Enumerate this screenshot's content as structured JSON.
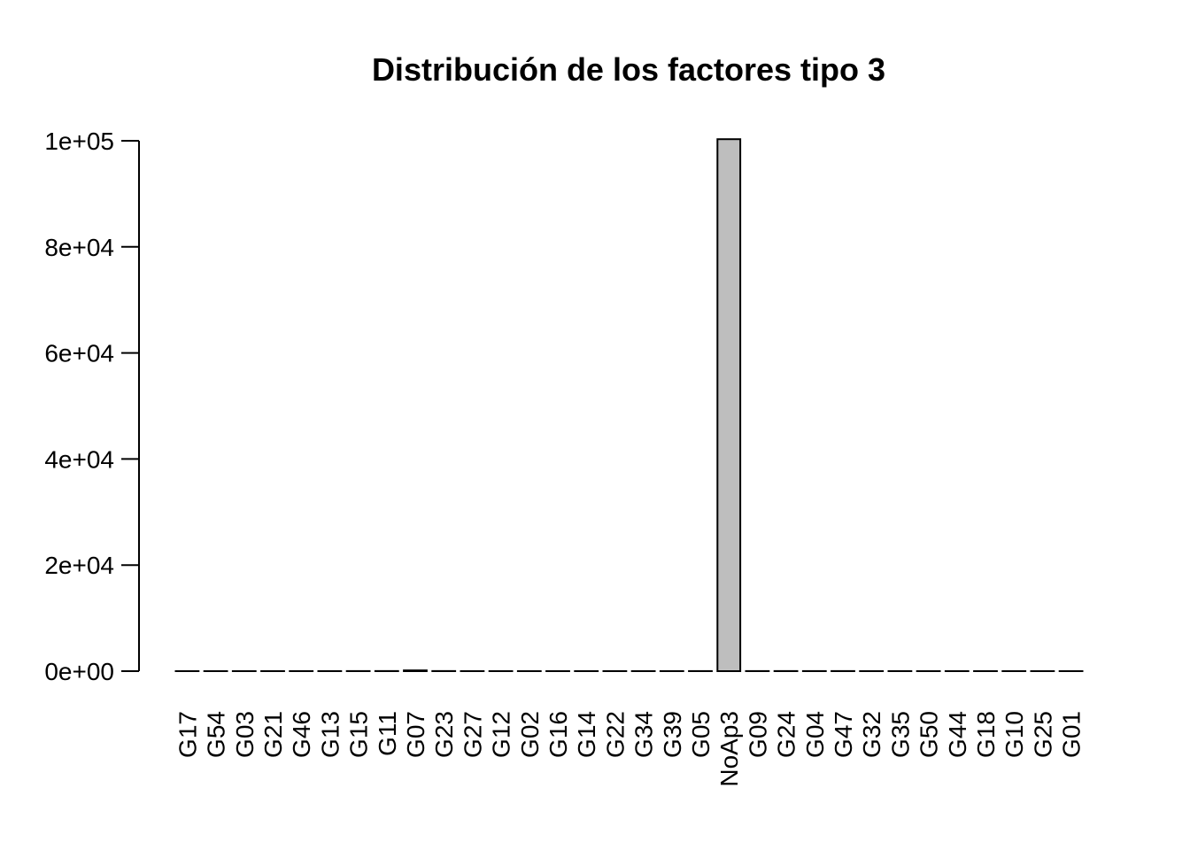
{
  "chart_data": {
    "type": "bar",
    "title": "Distribución de los factores tipo 3",
    "xlabel": "",
    "ylabel": "",
    "ylim": [
      0,
      100000
    ],
    "yticks": [
      0,
      20000,
      40000,
      60000,
      80000,
      100000
    ],
    "ytick_labels": [
      "0e+00",
      "2e+04",
      "4e+04",
      "6e+04",
      "8e+04",
      "1e+05"
    ],
    "categories": [
      "G17",
      "G54",
      "G03",
      "G21",
      "G46",
      "G13",
      "G15",
      "G11",
      "G07",
      "G23",
      "G27",
      "G12",
      "G02",
      "G16",
      "G14",
      "G22",
      "G34",
      "G39",
      "G05",
      "NoAp3",
      "G09",
      "G24",
      "G04",
      "G47",
      "G32",
      "G35",
      "G50",
      "G44",
      "G18",
      "G10",
      "G25",
      "G01"
    ],
    "values": [
      1,
      2,
      5,
      11,
      12,
      14,
      18,
      21,
      143,
      22,
      6,
      8,
      3,
      4,
      9,
      13,
      7,
      10,
      15,
      100300,
      17,
      20,
      16,
      19,
      5,
      11,
      3,
      6,
      9,
      4,
      2,
      1
    ],
    "bar_color": "#bebebe",
    "bar_stroke": "#000000",
    "grid": false,
    "legend": "none"
  }
}
